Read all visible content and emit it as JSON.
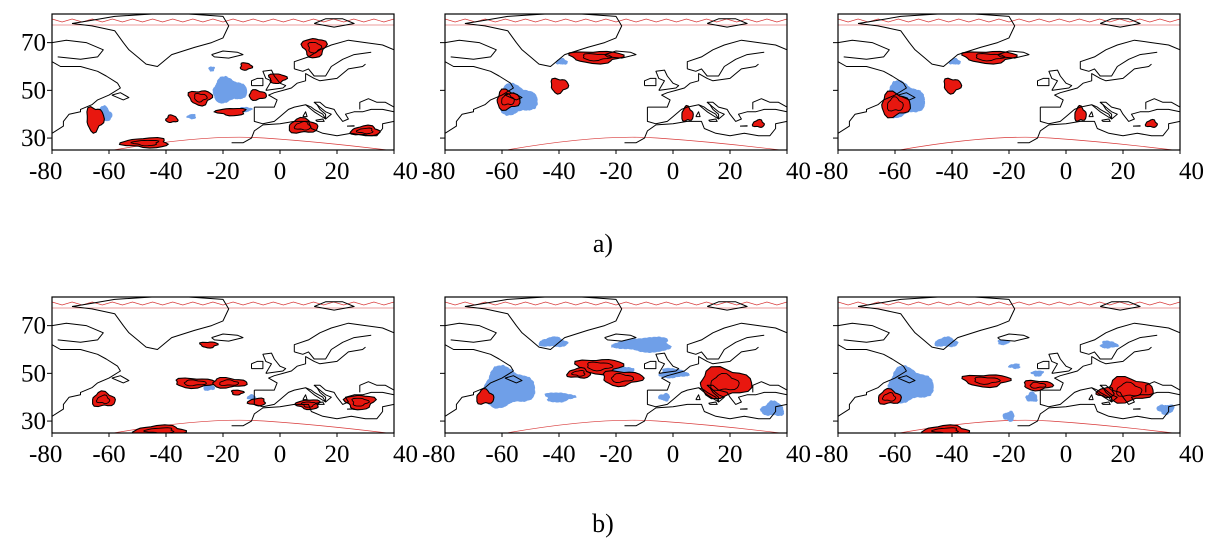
{
  "figure": {
    "colors": {
      "positive": "#e8170f",
      "negative": "#6f9fe8",
      "contour": "#000000",
      "frame": "#000000",
      "boundary": "#d83a3a"
    },
    "x_ticks": [
      "-80",
      "-60",
      "-40",
      "-20",
      "0",
      "20",
      "40"
    ],
    "y_ticks": [
      "70",
      "50",
      "30"
    ],
    "rows": [
      {
        "label": "a)",
        "panels": [
          "map",
          "map",
          "map"
        ]
      },
      {
        "label": "b)",
        "panels": [
          "map",
          "map",
          "map"
        ]
      }
    ]
  },
  "chart_data": {
    "type": "map",
    "longitude_range": [
      -80,
      40
    ],
    "latitude_range": [
      25,
      82
    ],
    "x_ticks": [
      -80,
      -60,
      -40,
      -20,
      0,
      20,
      40
    ],
    "y_ticks": [
      70,
      50,
      30
    ],
    "panels": [
      {
        "row": "a)",
        "col": 1,
        "positive": [
          [
            -28,
            47,
            4,
            3
          ],
          [
            -65,
            38,
            3,
            5
          ],
          [
            -8,
            48,
            3,
            2
          ],
          [
            8,
            35,
            5,
            3
          ],
          [
            30,
            33,
            5,
            2
          ],
          [
            -47,
            28,
            8,
            2
          ],
          [
            -17,
            41,
            5,
            1.5
          ],
          [
            12,
            68,
            4,
            4
          ],
          [
            -1,
            55,
            3,
            2
          ],
          [
            -12,
            60,
            2,
            1.5
          ],
          [
            -38,
            38,
            2,
            1.5
          ]
        ],
        "negative": [
          [
            -18,
            50,
            6,
            5
          ],
          [
            -62,
            40,
            3,
            3
          ],
          [
            -31,
            39,
            1.5,
            1
          ],
          [
            -24,
            59,
            1,
            1
          ],
          [
            -12,
            42,
            2,
            1
          ]
        ]
      },
      {
        "row": "a)",
        "col": 2,
        "positive": [
          [
            -27,
            64,
            9,
            2.5
          ],
          [
            -40,
            52,
            3,
            3
          ],
          [
            -58,
            46,
            4,
            4
          ],
          [
            5,
            40,
            2,
            3
          ],
          [
            30,
            36,
            2,
            1.5
          ]
        ],
        "negative": [
          [
            -55,
            46,
            7,
            6
          ],
          [
            -39,
            62,
            2,
            1.2
          ]
        ]
      },
      {
        "row": "a)",
        "col": 3,
        "positive": [
          [
            -27,
            64,
            9,
            2.5
          ],
          [
            -40,
            52,
            3,
            3
          ],
          [
            -60,
            44,
            5,
            5
          ],
          [
            5,
            40,
            2,
            3
          ],
          [
            30,
            36,
            2,
            1.5
          ]
        ],
        "negative": [
          [
            -57,
            46,
            7,
            7
          ],
          [
            -39,
            62,
            2,
            1.2
          ]
        ]
      },
      {
        "row": "b)",
        "col": 1,
        "positive": [
          [
            -25,
            62,
            3,
            1.2
          ],
          [
            -30,
            46,
            7,
            2
          ],
          [
            -18,
            46,
            6,
            2
          ],
          [
            -62,
            39,
            4,
            3
          ],
          [
            -42,
            26,
            9,
            2
          ],
          [
            -8,
            38,
            3,
            1.5
          ],
          [
            10,
            37,
            4,
            2
          ],
          [
            28,
            38,
            5,
            3
          ],
          [
            -15,
            42,
            2,
            1
          ]
        ],
        "negative": [
          [
            -25,
            44,
            2,
            1.2
          ],
          [
            -10,
            40,
            1.5,
            1
          ]
        ]
      },
      {
        "row": "b)",
        "col": 2,
        "positive": [
          [
            -26,
            53,
            8,
            3
          ],
          [
            -18,
            48,
            7,
            3
          ],
          [
            18,
            46,
            9,
            6
          ],
          [
            -66,
            40,
            3,
            3
          ],
          [
            -33,
            50,
            4,
            2
          ]
        ],
        "negative": [
          [
            -58,
            44,
            9,
            8
          ],
          [
            -42,
            63,
            5,
            2
          ],
          [
            -10,
            62,
            10,
            3
          ],
          [
            -20,
            50,
            6,
            3
          ],
          [
            -40,
            40,
            5,
            2
          ],
          [
            0,
            50,
            5,
            2
          ],
          [
            35,
            35,
            4,
            3
          ],
          [
            -3,
            40,
            2,
            1.5
          ]
        ]
      },
      {
        "row": "b)",
        "col": 3,
        "positive": [
          [
            -28,
            47,
            8,
            2.5
          ],
          [
            -10,
            45,
            5,
            2
          ],
          [
            22,
            43,
            8,
            5
          ],
          [
            -62,
            40,
            4,
            3
          ],
          [
            -42,
            26,
            8,
            2
          ],
          [
            14,
            42,
            3,
            2
          ]
        ],
        "negative": [
          [
            -55,
            45,
            8,
            7
          ],
          [
            -42,
            63,
            4,
            2
          ],
          [
            -18,
            53,
            2,
            1
          ],
          [
            -10,
            50,
            2,
            1.2
          ],
          [
            -22,
            63,
            2,
            1
          ],
          [
            15,
            62,
            3,
            1.5
          ],
          [
            -12,
            40,
            2,
            2
          ],
          [
            -20,
            32,
            2,
            2
          ],
          [
            35,
            35,
            3,
            2
          ]
        ]
      }
    ]
  }
}
